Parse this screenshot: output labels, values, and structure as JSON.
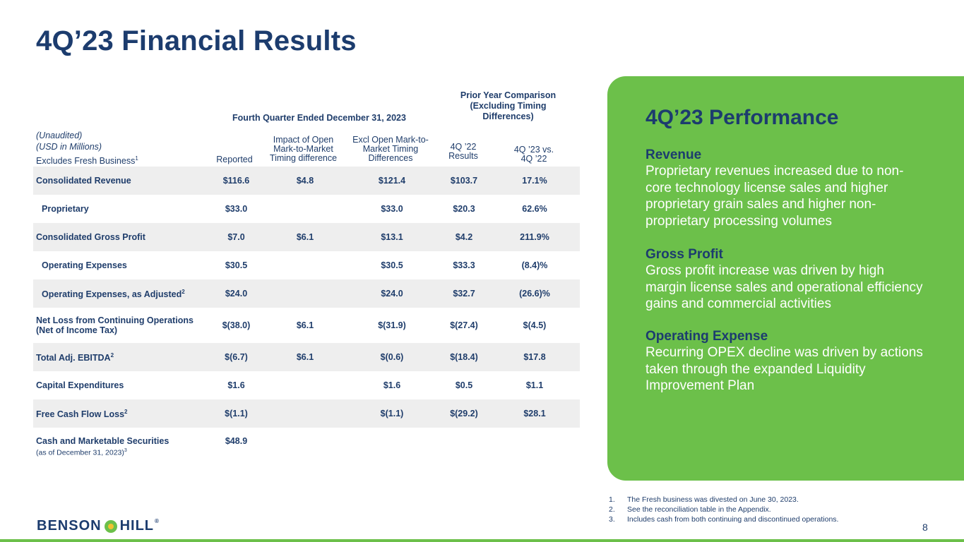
{
  "title": "4Q’23 Financial Results",
  "table": {
    "group_header_main": "Fourth Quarter Ended December 31, 2023",
    "group_header_prior": "Prior Year Comparison (Excluding Timing Differences)",
    "label_unaudited": "(Unaudited)",
    "label_usd": "(USD in Millions)",
    "label_excludes": "Excludes Fresh Business",
    "label_excludes_sup": "1",
    "col_reported": "Reported",
    "col_impact": "Impact of Open Mark-to-Market Timing difference",
    "col_excl": "Excl Open Mark-to-Market Timing Differences",
    "col_4q22": "4Q ’22 Results",
    "col_vs": "4Q ’23 vs. 4Q ’22",
    "rows": [
      {
        "label": "Consolidated Revenue",
        "sup": "",
        "reported": "$116.6",
        "impact": "$4.8",
        "excl": "$121.4",
        "prior": "$103.7",
        "vs": "17.1%"
      },
      {
        "label": "Proprietary",
        "sup": "",
        "reported": "$33.0",
        "impact": "",
        "excl": "$33.0",
        "prior": "$20.3",
        "vs": "62.6%"
      },
      {
        "label": "Consolidated Gross Profit",
        "sup": "",
        "reported": "$7.0",
        "impact": "$6.1",
        "excl": "$13.1",
        "prior": "$4.2",
        "vs": "211.9%"
      },
      {
        "label": "Operating Expenses",
        "sup": "",
        "reported": "$30.5",
        "impact": "",
        "excl": "$30.5",
        "prior": "$33.3",
        "vs": "(8.4)%"
      },
      {
        "label": "Operating Expenses, as Adjusted",
        "sup": "2",
        "reported": "$24.0",
        "impact": "",
        "excl": "$24.0",
        "prior": "$32.7",
        "vs": "(26.6)%"
      },
      {
        "label": "Net Loss from Continuing Operations (Net of Income Tax)",
        "sup": "",
        "reported": "$(38.0)",
        "impact": "$6.1",
        "excl": "$(31.9)",
        "prior": "$(27.4)",
        "vs": "$(4.5)"
      },
      {
        "label": "Total Adj. EBITDA",
        "sup": "2",
        "reported": "$(6.7)",
        "impact": "$6.1",
        "excl": "$(0.6)",
        "prior": "$(18.4)",
        "vs": "$17.8"
      },
      {
        "label": "Capital Expenditures",
        "sup": "",
        "reported": "$1.6",
        "impact": "",
        "excl": "$1.6",
        "prior": "$0.5",
        "vs": "$1.1"
      },
      {
        "label": "Free Cash Flow Loss",
        "sup": "2",
        "reported": "$(1.1)",
        "impact": "",
        "excl": "$(1.1)",
        "prior": "$(29.2)",
        "vs": "$28.1"
      },
      {
        "label": "Cash and Marketable Securities",
        "sub": "(as of December 31, 2023)",
        "sub_sup": "3",
        "reported": "$48.9",
        "impact": "",
        "excl": "",
        "prior": "",
        "vs": ""
      }
    ]
  },
  "panel": {
    "title": "4Q’23 Performance",
    "blocks": [
      {
        "heading": "Revenue",
        "text": "Proprietary revenues increased due to non-core technology license sales and higher proprietary grain sales and higher non-proprietary processing volumes"
      },
      {
        "heading": "Gross Profit",
        "text": "Gross profit increase was driven by high margin license sales and operational efficiency gains and commercial activities"
      },
      {
        "heading": "Operating Expense",
        "text": "Recurring OPEX decline was driven by actions taken through the expanded Liquidity Improvement Plan"
      }
    ]
  },
  "footnotes": [
    {
      "num": "1.",
      "text": "The Fresh business was divested on June 30, 2023."
    },
    {
      "num": "2.",
      "text": "See the reconciliation table in the Appendix."
    },
    {
      "num": "3.",
      "text": "Includes cash from both continuing and discontinued operations."
    }
  ],
  "logo": {
    "left": "BENSON",
    "right": "HILL",
    "reg": "®"
  },
  "page_number": "8",
  "colors": {
    "navy": "#1c3c6e",
    "green": "#6cc04a",
    "shade": "#eeeeee"
  }
}
